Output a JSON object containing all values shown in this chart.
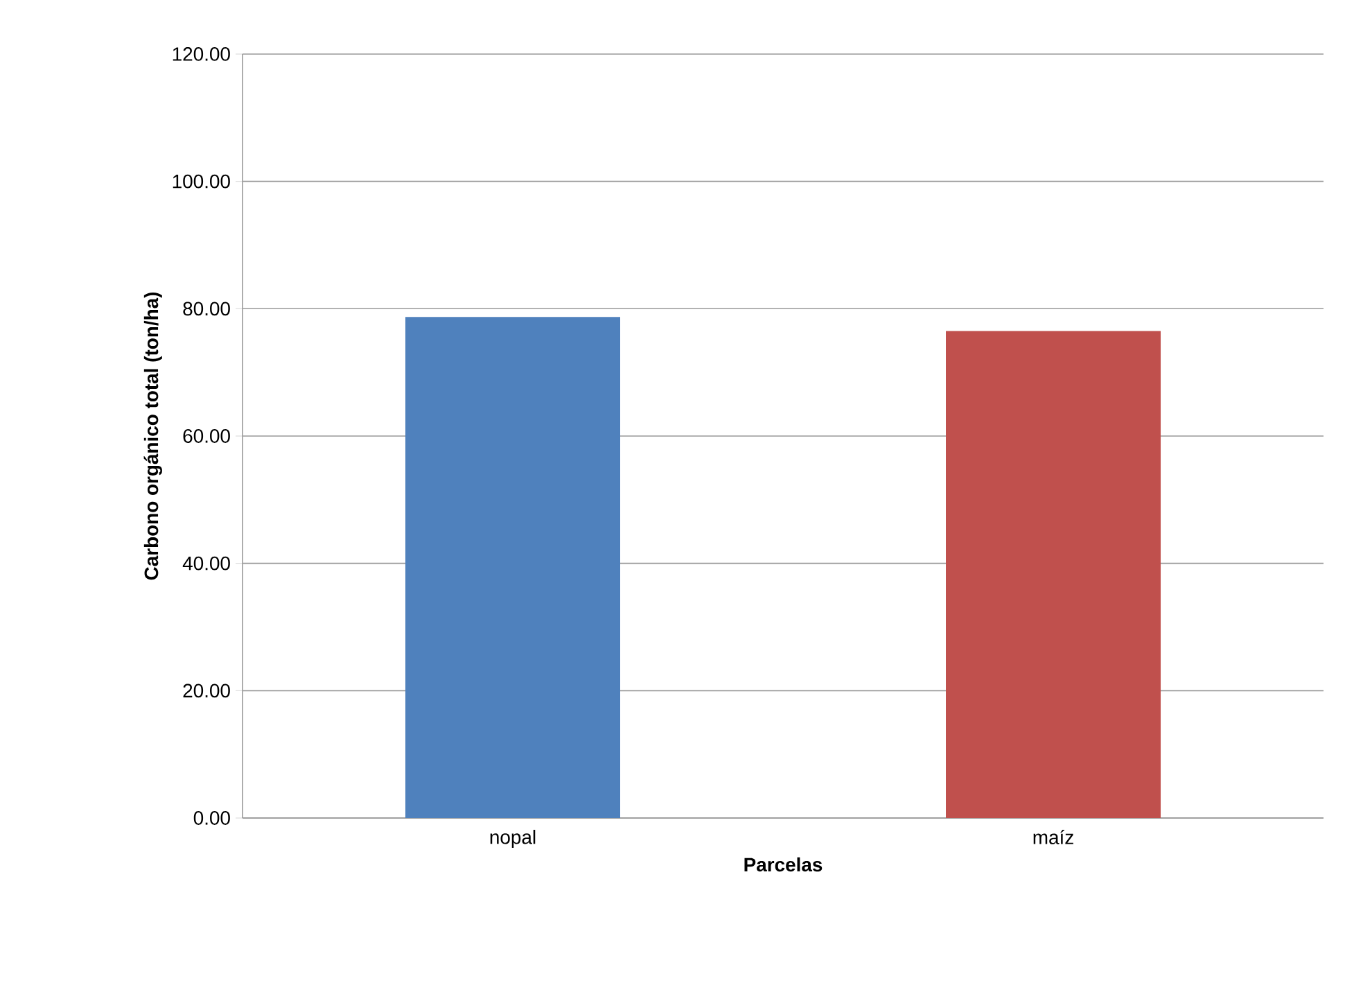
{
  "chart_data": {
    "type": "bar",
    "xlabel": "Parcelas",
    "ylabel": "Carbono orgánico total (ton/ha)",
    "categories": [
      "nopal",
      "maíz"
    ],
    "values": [
      78.7,
      76.5
    ],
    "colors": [
      "#4f81bd",
      "#c0504d"
    ],
    "ylim": [
      0,
      120
    ],
    "yticks": [
      {
        "value": 0,
        "label": "0.00"
      },
      {
        "value": 20,
        "label": "20.00"
      },
      {
        "value": 40,
        "label": "40.00"
      },
      {
        "value": 60,
        "label": "60.00"
      },
      {
        "value": 80,
        "label": "80.00"
      },
      {
        "value": 100,
        "label": "100.00"
      },
      {
        "value": 120,
        "label": "120.00"
      }
    ],
    "grid": "y"
  }
}
